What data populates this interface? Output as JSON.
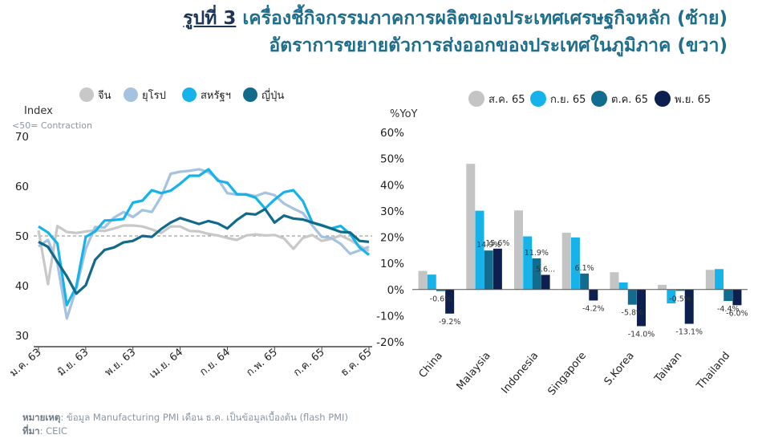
{
  "title": {
    "label": "รูปที่ 3",
    "line1": "เครื่องชี้กิจกรรมภาคการผลิตของประเทศเศรษฐกิจหลัก (ซ้าย)",
    "line2": "อัตราการขยายตัวการส่งออกของประเทศในภูมิภาค (ขวา)"
  },
  "footer": {
    "note_label": "หมายเหตุ",
    "note_text": ": ข้อมูล Manufacturing PMI เดือน ธ.ค. เป็นข้อมูลเบื้องต้น (flash PMI)",
    "source_label": "ที่มา",
    "source_text": ": CEIC"
  },
  "chart_data": [
    {
      "type": "line",
      "ylabel": "Index",
      "note": "<50= Contraction",
      "ylim": [
        30,
        70
      ],
      "yticks": [
        30,
        40,
        50,
        60,
        70
      ],
      "reference_line": 50,
      "xtick_labels": [
        "ม.ค. 63",
        "มิ.ย. 63",
        "พ.ย. 63",
        "เม.ย. 64",
        "ก.ย. 64",
        "ก.พ. 65",
        "ก.ค. 65",
        "ธ.ค. 65"
      ],
      "xtick_index": [
        0,
        5,
        10,
        15,
        20,
        25,
        30,
        35
      ],
      "legend_position": "top",
      "series": [
        {
          "name": "จีน",
          "color": "#c8c8c8",
          "values": [
            51.1,
            40.3,
            52.0,
            50.8,
            50.6,
            50.9,
            51.1,
            51.0,
            51.5,
            52.1,
            52.1,
            51.9,
            51.3,
            50.6,
            51.9,
            51.9,
            51.0,
            50.9,
            50.4,
            50.1,
            49.6,
            49.2,
            50.1,
            50.3,
            50.1,
            50.2,
            49.5,
            47.4,
            49.6,
            50.2,
            49.0,
            49.4,
            50.1,
            49.2,
            48.0,
            47.0
          ]
        },
        {
          "name": "ยุโรป",
          "color": "#a5c2e1",
          "values": [
            47.9,
            49.2,
            44.5,
            33.4,
            39.4,
            47.4,
            51.8,
            51.7,
            53.7,
            54.8,
            53.8,
            55.2,
            54.8,
            57.9,
            62.5,
            62.9,
            63.1,
            63.4,
            62.8,
            61.4,
            58.6,
            58.3,
            58.4,
            58.0,
            58.7,
            58.2,
            56.5,
            55.5,
            54.6,
            52.1,
            49.8,
            49.6,
            48.4,
            46.4,
            47.1,
            47.8
          ]
        },
        {
          "name": "สหรัฐฯ",
          "color": "#16b3ea",
          "values": [
            51.9,
            50.7,
            48.5,
            36.1,
            39.8,
            49.8,
            50.9,
            53.1,
            53.2,
            53.4,
            56.7,
            57.1,
            59.2,
            58.6,
            59.1,
            60.5,
            62.1,
            62.1,
            63.4,
            61.1,
            60.7,
            58.4,
            58.3,
            57.7,
            55.5,
            57.3,
            58.8,
            59.2,
            57.0,
            52.7,
            52.2,
            51.5,
            52.0,
            50.4,
            47.7,
            46.2
          ]
        },
        {
          "name": "ญี่ปุ่น",
          "color": "#106b8a",
          "values": [
            48.8,
            47.8,
            44.8,
            41.9,
            38.4,
            40.1,
            45.2,
            47.2,
            47.7,
            48.7,
            49.0,
            50.0,
            49.8,
            51.4,
            52.7,
            53.6,
            53.0,
            52.4,
            53.0,
            52.5,
            51.5,
            53.2,
            54.5,
            54.3,
            55.4,
            52.7,
            54.1,
            53.5,
            53.3,
            52.7,
            52.1,
            51.5,
            50.8,
            50.7,
            49.0,
            48.8
          ]
        }
      ]
    },
    {
      "type": "bar",
      "ylabel": "%YoY",
      "ylim": [
        -20,
        60
      ],
      "yticks": [
        -20,
        -10,
        0,
        10,
        20,
        30,
        40,
        50,
        60
      ],
      "ytick_format": "percent",
      "categories": [
        "China",
        "Malaysia",
        "Indonesia",
        "Singapore",
        "S.Korea",
        "Taiwan",
        "Thailand"
      ],
      "legend_position": "top",
      "series": [
        {
          "name": "ส.ค. 65",
          "color": "#c4c4c4",
          "values": [
            7.1,
            48.0,
            30.2,
            21.7,
            6.6,
            1.8,
            7.5
          ]
        },
        {
          "name": "ก.ย. 65",
          "color": "#16b3ea",
          "values": [
            5.7,
            30.1,
            20.3,
            19.9,
            2.7,
            -5.3,
            7.8
          ]
        },
        {
          "name": "ต.ค. 65",
          "color": "#116d8f",
          "values": [
            -0.6,
            14.9,
            11.9,
            6.1,
            -5.8,
            -0.5,
            -4.4
          ]
        },
        {
          "name": "พ.ย. 65",
          "color": "#0d1f4f",
          "values": [
            -9.2,
            15.6,
            5.6,
            -4.2,
            -14.0,
            -13.1,
            -6.0
          ]
        }
      ],
      "data_labels": [
        {
          "category": "China",
          "series": 2,
          "text": "-0.6%"
        },
        {
          "category": "China",
          "series": 3,
          "text": "-9.2%"
        },
        {
          "category": "Malaysia",
          "series": 2,
          "text": "14.9%"
        },
        {
          "category": "Malaysia",
          "series": 3,
          "text": "15.6%"
        },
        {
          "category": "Indonesia",
          "series": 2,
          "text": "11.9%"
        },
        {
          "category": "Indonesia",
          "series": 3,
          "text": "5.6..."
        },
        {
          "category": "Singapore",
          "series": 2,
          "text": "6.1%"
        },
        {
          "category": "Singapore",
          "series": 3,
          "text": "-4.2%"
        },
        {
          "category": "S.Korea",
          "series": 2,
          "text": "-5.8%"
        },
        {
          "category": "S.Korea",
          "series": 3,
          "text": "-14.0%"
        },
        {
          "category": "Taiwan",
          "series": 2,
          "text": "-0.5%"
        },
        {
          "category": "Taiwan",
          "series": 3,
          "text": "-13.1%"
        },
        {
          "category": "Thailand",
          "series": 2,
          "text": "-4.4%"
        },
        {
          "category": "Thailand",
          "series": 3,
          "text": "-6.0%"
        }
      ]
    }
  ]
}
